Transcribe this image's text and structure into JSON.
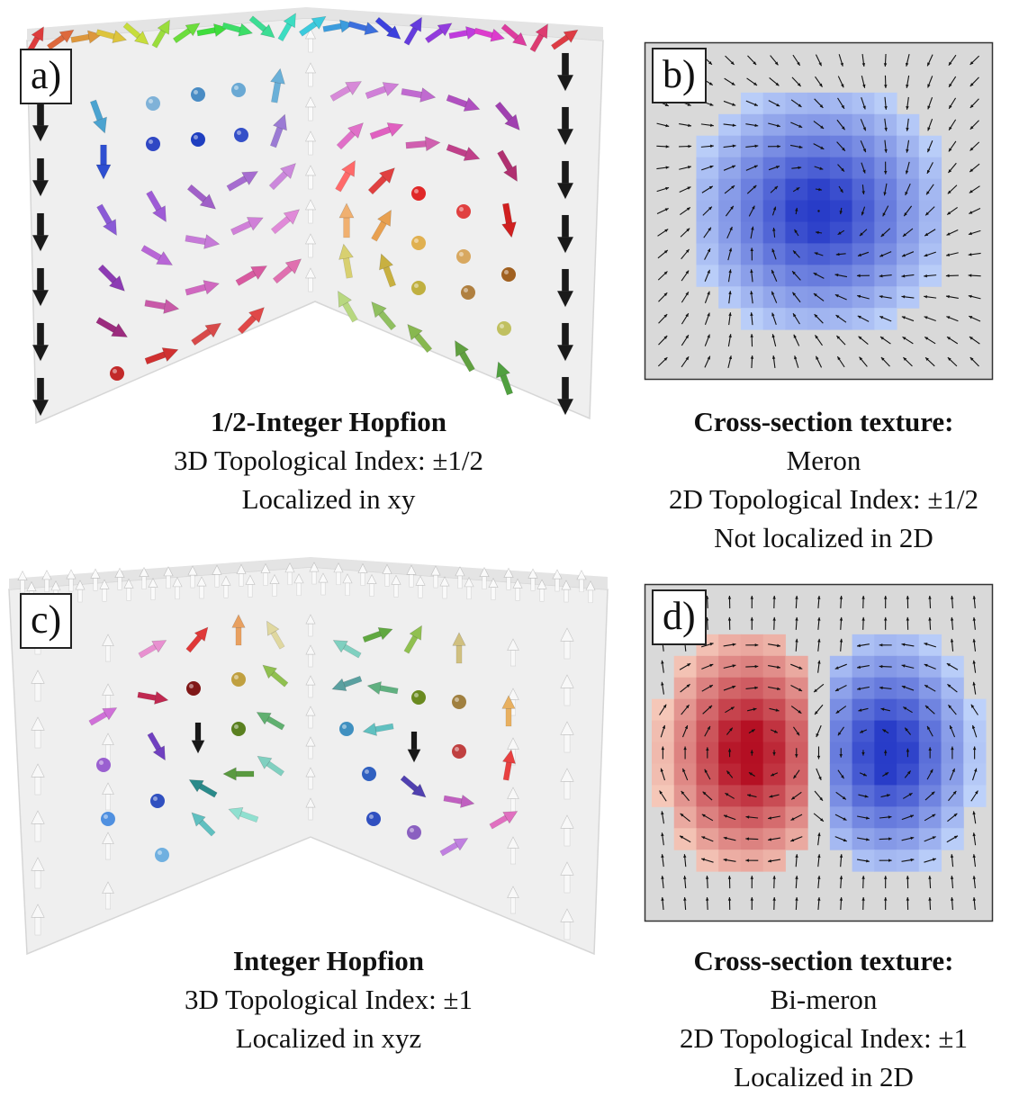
{
  "panels": {
    "a": {
      "label": "a)",
      "title": "1/2-Integer Hopfion",
      "line1": "3D Topological Index: ±1/2",
      "line2": "Localized in xy"
    },
    "b": {
      "label": "b)",
      "title": "Cross-section texture:",
      "line1": "Meron",
      "line2": "2D Topological Index: ±1/2",
      "line3": "Not localized in 2D"
    },
    "c": {
      "label": "c)",
      "title": "Integer Hopfion",
      "line1": "3D Topological Index: ±1",
      "line2": "Localized in xyz"
    },
    "d": {
      "label": "d)",
      "title": "Cross-section texture:",
      "line1": "Bi-meron",
      "line2": "2D Topological Index: ±1",
      "line3": "Localized in 2D"
    }
  },
  "colors": {
    "background_gray": "#d9d9d9",
    "blue_core": "#2a3fbf",
    "red_core": "#b3121e",
    "slab": "#f1f1f1"
  }
}
